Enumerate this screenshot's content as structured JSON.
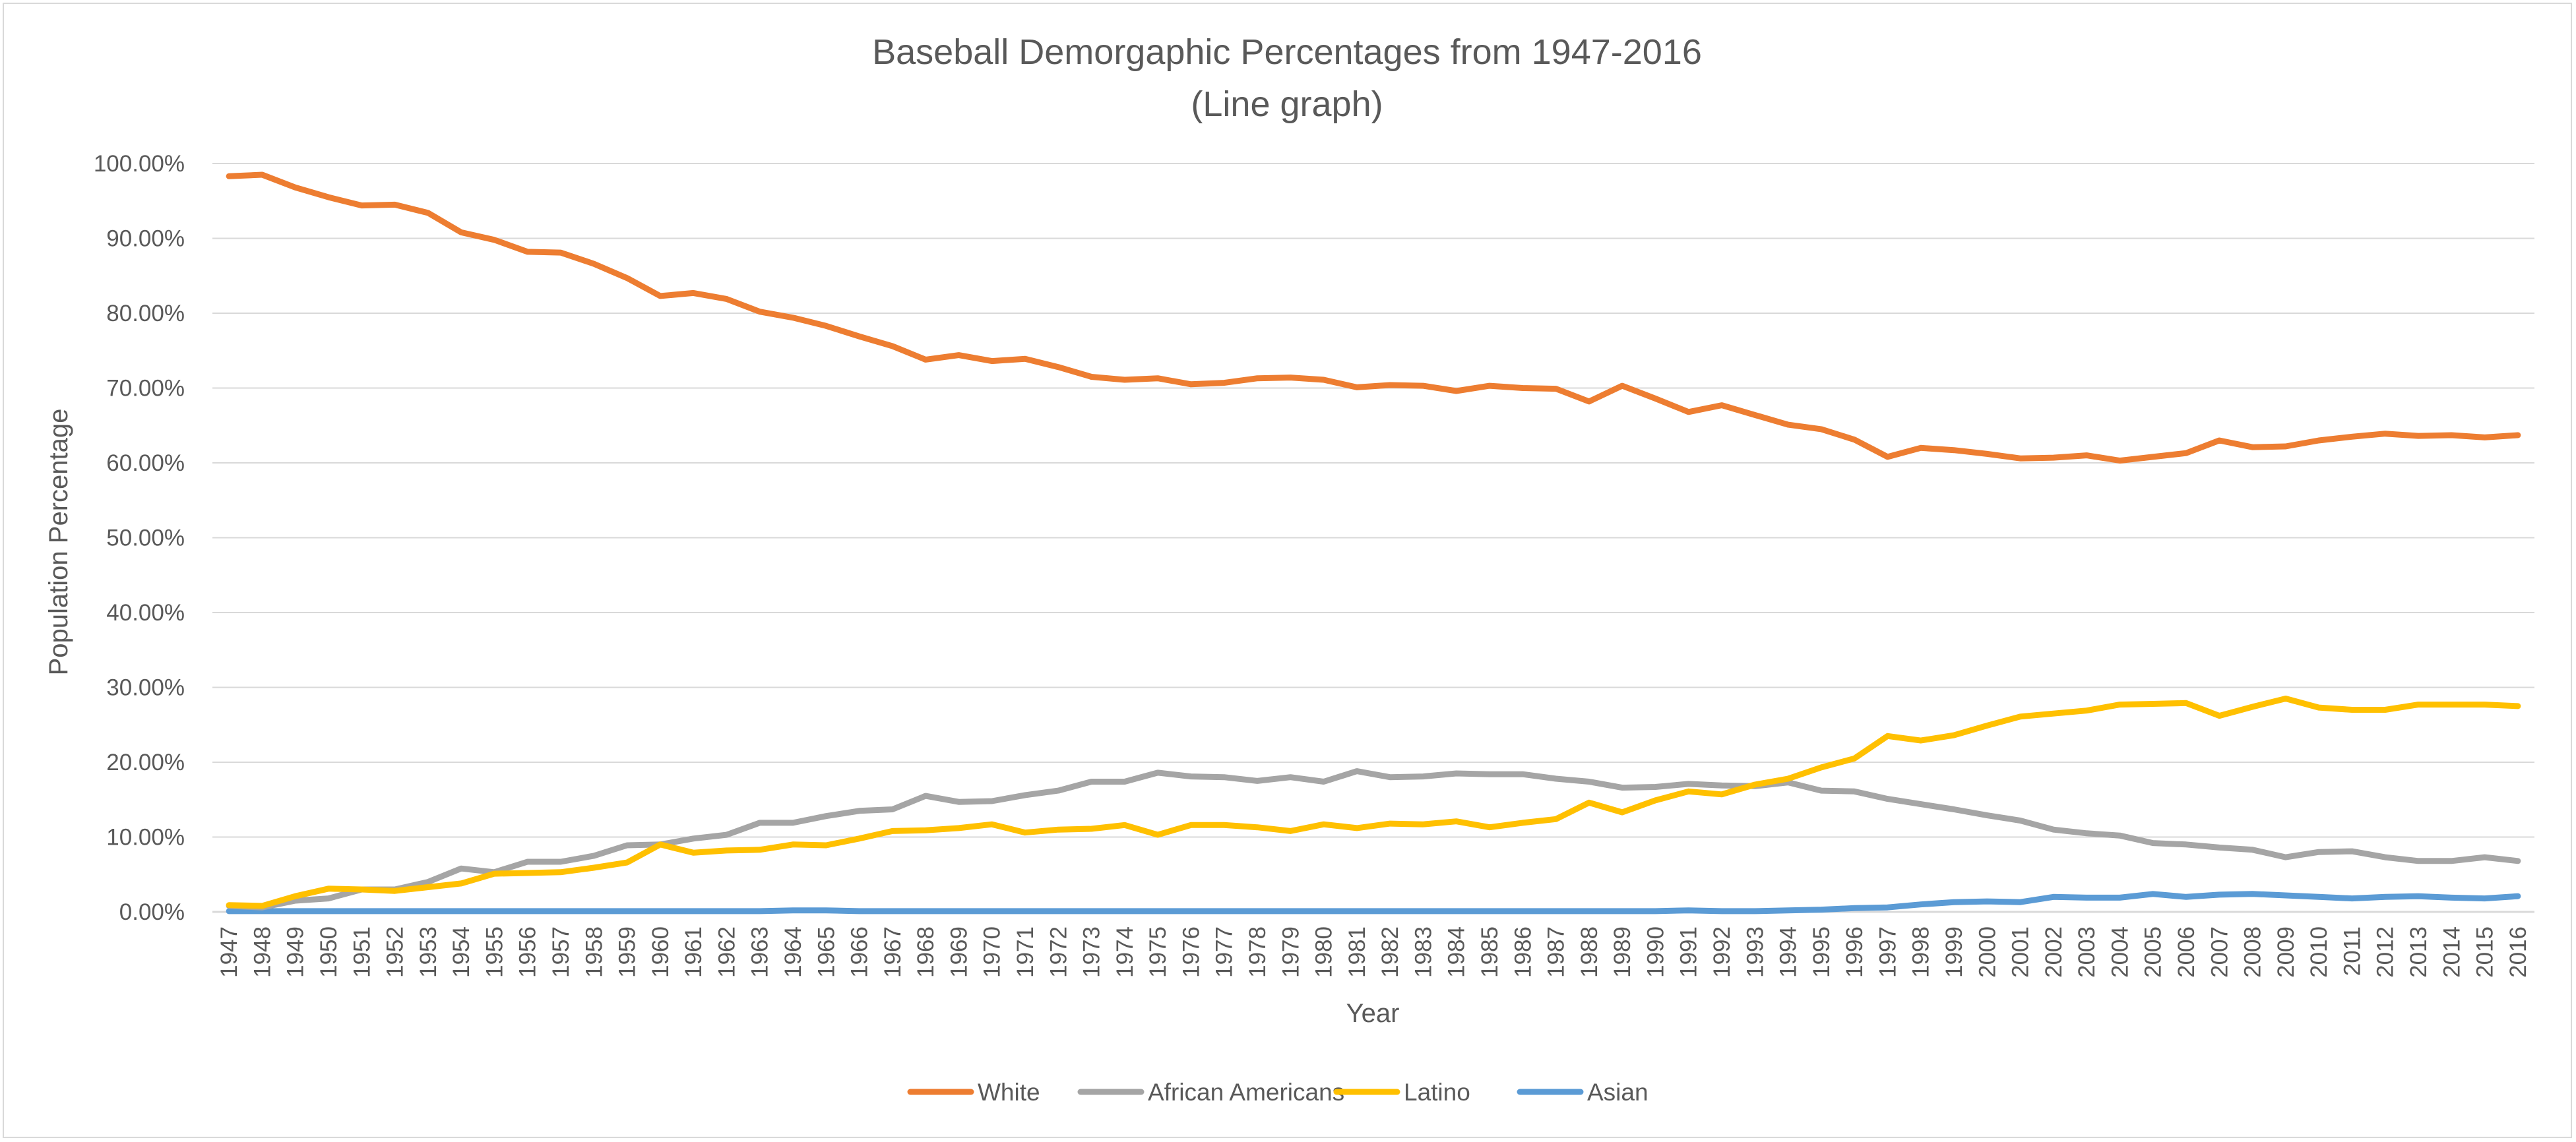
{
  "chart_data": {
    "type": "line",
    "title": "Baseball Demorgaphic Percentages from 1947-2016",
    "subtitle": "(Line graph)",
    "xlabel": "Year",
    "ylabel": "Population Percentage",
    "ylim": [
      0,
      100
    ],
    "yticks": [
      "0.00%",
      "10.00%",
      "20.00%",
      "30.00%",
      "40.00%",
      "50.00%",
      "60.00%",
      "70.00%",
      "80.00%",
      "90.00%",
      "100.00%"
    ],
    "grid": true,
    "legend_position": "bottom",
    "categories": [
      "1947",
      "1948",
      "1949",
      "1950",
      "1951",
      "1952",
      "1953",
      "1954",
      "1955",
      "1956",
      "1957",
      "1958",
      "1959",
      "1960",
      "1961",
      "1962",
      "1963",
      "1964",
      "1965",
      "1966",
      "1967",
      "1968",
      "1969",
      "1970",
      "1971",
      "1972",
      "1973",
      "1974",
      "1975",
      "1976",
      "1977",
      "1978",
      "1979",
      "1980",
      "1981",
      "1982",
      "1983",
      "1984",
      "1985",
      "1986",
      "1987",
      "1988",
      "1989",
      "1990",
      "1991",
      "1992",
      "1993",
      "1994",
      "1995",
      "1996",
      "1997",
      "1998",
      "1999",
      "2000",
      "2001",
      "2002",
      "2003",
      "2004",
      "2005",
      "2006",
      "2007",
      "2008",
      "2009",
      "2010",
      "2011",
      "2012",
      "2013",
      "2014",
      "2015",
      "2016"
    ],
    "series": [
      {
        "name": "White",
        "color": "#ED7D31",
        "values": [
          98.3,
          98.5,
          96.8,
          95.5,
          94.4,
          94.5,
          93.4,
          90.8,
          89.8,
          88.2,
          88.1,
          86.6,
          84.7,
          82.3,
          82.7,
          81.9,
          80.2,
          79.4,
          78.3,
          76.9,
          75.6,
          73.8,
          74.4,
          73.6,
          73.9,
          72.8,
          71.5,
          71.1,
          71.3,
          70.5,
          70.7,
          71.3,
          71.4,
          71.1,
          70.1,
          70.4,
          70.3,
          69.6,
          70.3,
          70.0,
          69.9,
          68.2,
          70.3,
          68.6,
          66.8,
          67.7,
          66.4,
          65.1,
          64.5,
          63.1,
          60.8,
          62.0,
          61.7,
          61.2,
          60.6,
          60.7,
          61.0,
          60.3,
          60.8,
          61.3,
          63.0,
          62.1,
          62.2,
          63.0,
          63.5,
          63.9,
          63.6,
          63.7,
          63.4,
          63.7
        ]
      },
      {
        "name": "African Americans",
        "color": "#A5A5A5",
        "values": [
          0.8,
          0.6,
          1.5,
          1.8,
          3.0,
          3.0,
          4.0,
          5.8,
          5.3,
          6.7,
          6.7,
          7.5,
          8.9,
          9.0,
          9.8,
          10.3,
          11.9,
          11.9,
          12.8,
          13.5,
          13.7,
          15.5,
          14.7,
          14.8,
          15.6,
          16.2,
          17.4,
          17.4,
          18.6,
          18.1,
          18.0,
          17.5,
          18.0,
          17.4,
          18.8,
          18.0,
          18.1,
          18.5,
          18.4,
          18.4,
          17.8,
          17.4,
          16.6,
          16.7,
          17.1,
          16.9,
          16.8,
          17.3,
          16.2,
          16.1,
          15.1,
          14.4,
          13.7,
          12.9,
          12.2,
          11.0,
          10.5,
          10.2,
          9.2,
          9.0,
          8.6,
          8.3,
          7.3,
          8.0,
          8.1,
          7.3,
          6.8,
          6.8,
          7.3,
          6.8
        ]
      },
      {
        "name": "Latino",
        "color": "#FFC000",
        "values": [
          0.9,
          0.8,
          2.1,
          3.1,
          3.0,
          2.8,
          3.3,
          3.8,
          5.1,
          5.2,
          5.3,
          5.9,
          6.6,
          9.0,
          7.9,
          8.2,
          8.3,
          9.0,
          8.9,
          9.8,
          10.8,
          10.9,
          11.2,
          11.7,
          10.6,
          11.0,
          11.1,
          11.6,
          10.3,
          11.6,
          11.6,
          11.3,
          10.8,
          11.7,
          11.2,
          11.8,
          11.7,
          12.1,
          11.3,
          11.9,
          12.4,
          14.6,
          13.3,
          14.9,
          16.1,
          15.7,
          17.0,
          17.8,
          19.3,
          20.5,
          23.5,
          22.9,
          23.6,
          24.9,
          26.1,
          26.5,
          26.9,
          27.7,
          27.8,
          27.9,
          26.2,
          27.4,
          28.5,
          27.3,
          27.0,
          27.0,
          27.7,
          27.7,
          27.7,
          27.5
        ]
      },
      {
        "name": "Asian",
        "color": "#5B9BD5",
        "values": [
          0.1,
          0.1,
          0.1,
          0.1,
          0.1,
          0.1,
          0.1,
          0.1,
          0.1,
          0.1,
          0.1,
          0.1,
          0.1,
          0.1,
          0.1,
          0.1,
          0.1,
          0.2,
          0.2,
          0.1,
          0.1,
          0.1,
          0.1,
          0.1,
          0.1,
          0.1,
          0.1,
          0.1,
          0.1,
          0.1,
          0.1,
          0.1,
          0.1,
          0.1,
          0.1,
          0.1,
          0.1,
          0.1,
          0.1,
          0.1,
          0.1,
          0.1,
          0.1,
          0.1,
          0.2,
          0.1,
          0.1,
          0.2,
          0.3,
          0.5,
          0.6,
          1.0,
          1.3,
          1.4,
          1.3,
          2.0,
          1.9,
          1.9,
          2.4,
          2.0,
          2.3,
          2.4,
          2.2,
          2.0,
          1.8,
          2.0,
          2.1,
          1.9,
          1.8,
          2.1
        ]
      }
    ]
  }
}
